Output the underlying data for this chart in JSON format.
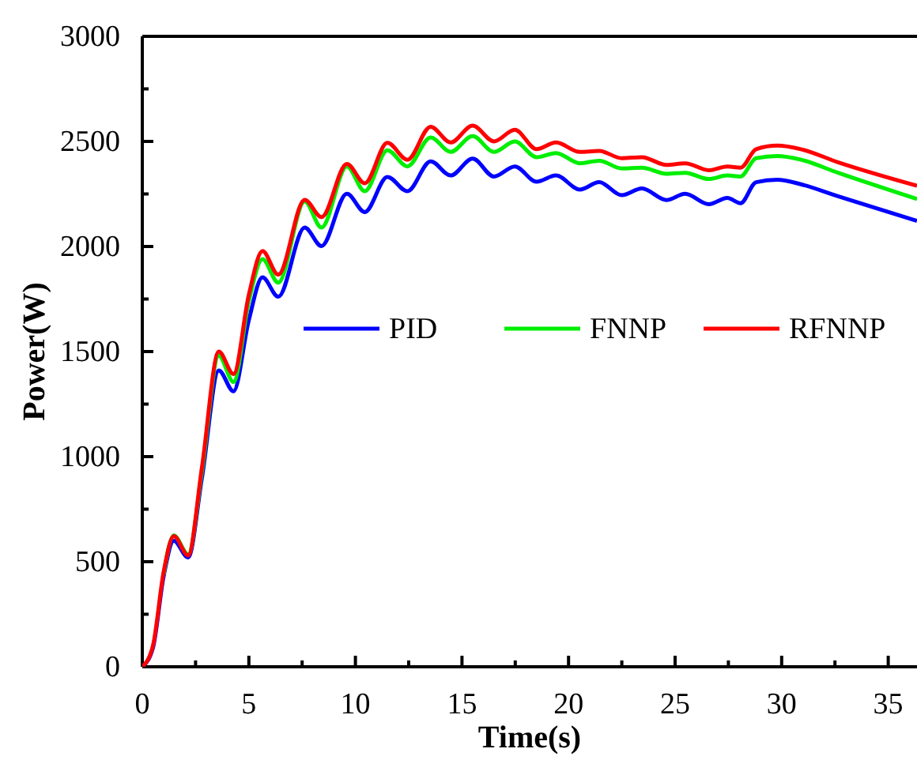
{
  "chart_data": {
    "type": "line",
    "xlabel": "Time(s)",
    "ylabel": "Power(W)",
    "xlim": [
      0,
      36.35
    ],
    "ylim": [
      0,
      3000
    ],
    "xticks": [
      0,
      {
        "value": 2.5,
        "label": null
      },
      5,
      {
        "value": 7.5,
        "label": null
      },
      10,
      {
        "value": 12.5,
        "label": null
      },
      15,
      {
        "value": 17.5,
        "label": null
      },
      20,
      {
        "value": 22.5,
        "label": null
      },
      25,
      {
        "value": 27.5,
        "label": null
      },
      30,
      {
        "value": 32.5,
        "label": null
      },
      35
    ],
    "yticks": [
      0,
      {
        "value": 250,
        "label": null
      },
      500,
      {
        "value": 750,
        "label": null
      },
      1000,
      {
        "value": 1250,
        "label": null
      },
      1500,
      {
        "value": 1750,
        "label": null
      },
      2000,
      {
        "value": 2250,
        "label": null
      },
      2500,
      {
        "value": 2750,
        "label": null
      },
      3000
    ],
    "x": [
      0,
      0.5,
      1.0,
      1.48,
      2.15,
      2.8,
      3.59,
      4.28,
      5.0,
      5.64,
      6.38,
      7.62,
      8.41,
      9.6,
      10.44,
      11.5,
      12.44,
      13.53,
      14.47,
      15.5,
      16.5,
      17.48,
      18.5,
      19.41,
      20.53,
      21.44,
      22.5,
      23.44,
      24.6,
      25.47,
      26.58,
      27.45,
      28.07,
      28.8,
      29.8,
      30.9,
      32.64,
      36.35
    ],
    "series": [
      {
        "name": "PID",
        "color": "#0000ff",
        "values": [
          0,
          90,
          430,
          600,
          520,
          900,
          1410,
          1311,
          1650,
          1853,
          1761,
          2090,
          2002,
          2251,
          2164,
          2331,
          2263,
          2405,
          2338,
          2418,
          2333,
          2381,
          2308,
          2338,
          2271,
          2306,
          2244,
          2276,
          2221,
          2251,
          2201,
          2231,
          2206,
          2306,
          2318,
          2296,
          2239,
          2122
        ]
      },
      {
        "name": "FNNP",
        "color": "#00ee00",
        "values": [
          null,
          null,
          440,
          625,
          535,
          930,
          1480,
          1355,
          1740,
          1940,
          1828,
          2214,
          2090,
          2381,
          2263,
          2458,
          2381,
          2519,
          2450,
          2525,
          2450,
          2500,
          2425,
          2445,
          2396,
          2408,
          2371,
          2375,
          2346,
          2351,
          2321,
          2338,
          2333,
          2420,
          2430,
          2413,
          2351,
          2226
        ]
      },
      {
        "name": "RFNNP",
        "color": "#ff0000",
        "values": [
          0,
          100,
          450,
          622,
          530,
          950,
          1500,
          1393,
          1770,
          1978,
          1866,
          2222,
          2140,
          2393,
          2301,
          2493,
          2413,
          2570,
          2495,
          2575,
          2500,
          2555,
          2463,
          2495,
          2450,
          2455,
          2420,
          2425,
          2388,
          2396,
          2363,
          2381,
          2375,
          2463,
          2480,
          2463,
          2401,
          2289
        ]
      }
    ],
    "legend": "center",
    "grid": false
  }
}
